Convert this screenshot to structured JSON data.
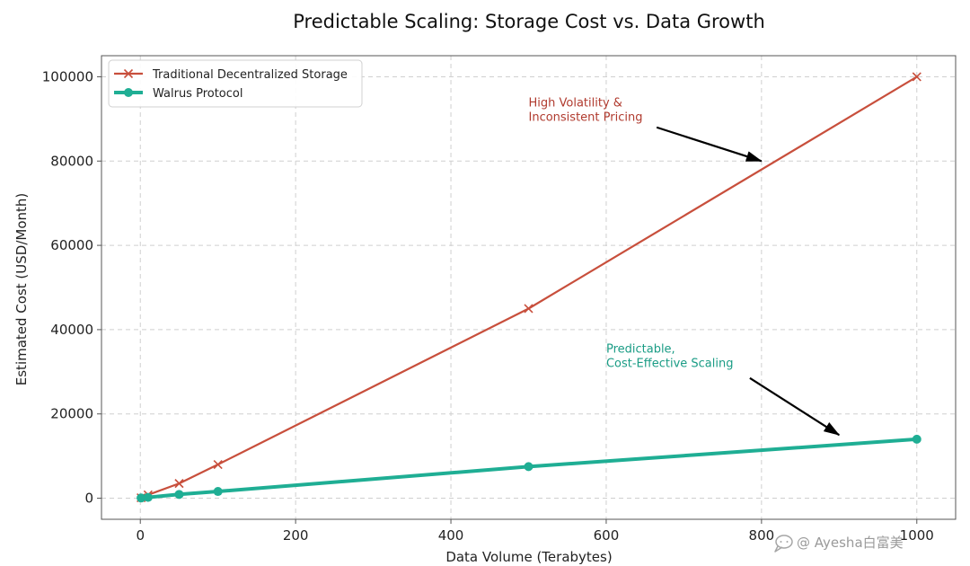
{
  "chart_data": {
    "type": "line",
    "title": "Predictable Scaling: Storage Cost vs. Data Growth",
    "xlabel": "Data Volume (Terabytes)",
    "ylabel": "Estimated Cost (USD/Month)",
    "xlim": [
      -50,
      1050
    ],
    "ylim": [
      -5000,
      105000
    ],
    "xticks": [
      0,
      200,
      400,
      600,
      800,
      1000
    ],
    "yticks": [
      0,
      20000,
      40000,
      60000,
      80000,
      100000
    ],
    "grid": true,
    "legend_position": "top-left",
    "series": [
      {
        "name": "Traditional Decentralized Storage",
        "color": "#c84f3c",
        "marker": "x",
        "x": [
          1,
          10,
          50,
          100,
          500,
          1000
        ],
        "y": [
          100,
          800,
          3500,
          8000,
          45000,
          100000
        ]
      },
      {
        "name": "Walrus Protocol",
        "color": "#1fae94",
        "marker": "circle",
        "x": [
          1,
          10,
          50,
          100,
          500,
          1000
        ],
        "y": [
          50,
          200,
          900,
          1600,
          7500,
          14000
        ]
      }
    ],
    "annotations": [
      {
        "lines": [
          "High Volatility &",
          "Inconsistent Pricing"
        ],
        "color": "#b03a2e",
        "text_at": [
          500,
          93000
        ],
        "arrow_from": [
          665,
          88000
        ],
        "arrow_to": [
          800,
          80000
        ]
      },
      {
        "lines": [
          "Predictable,",
          "Cost-Effective Scaling"
        ],
        "color": "#1a9c85",
        "text_at": [
          600,
          34500
        ],
        "arrow_from": [
          785,
          28500
        ],
        "arrow_to": [
          900,
          15000
        ]
      }
    ]
  },
  "watermark": {
    "text": "@ Ayesha白富美",
    "icon": "chat-bubble-icon"
  }
}
